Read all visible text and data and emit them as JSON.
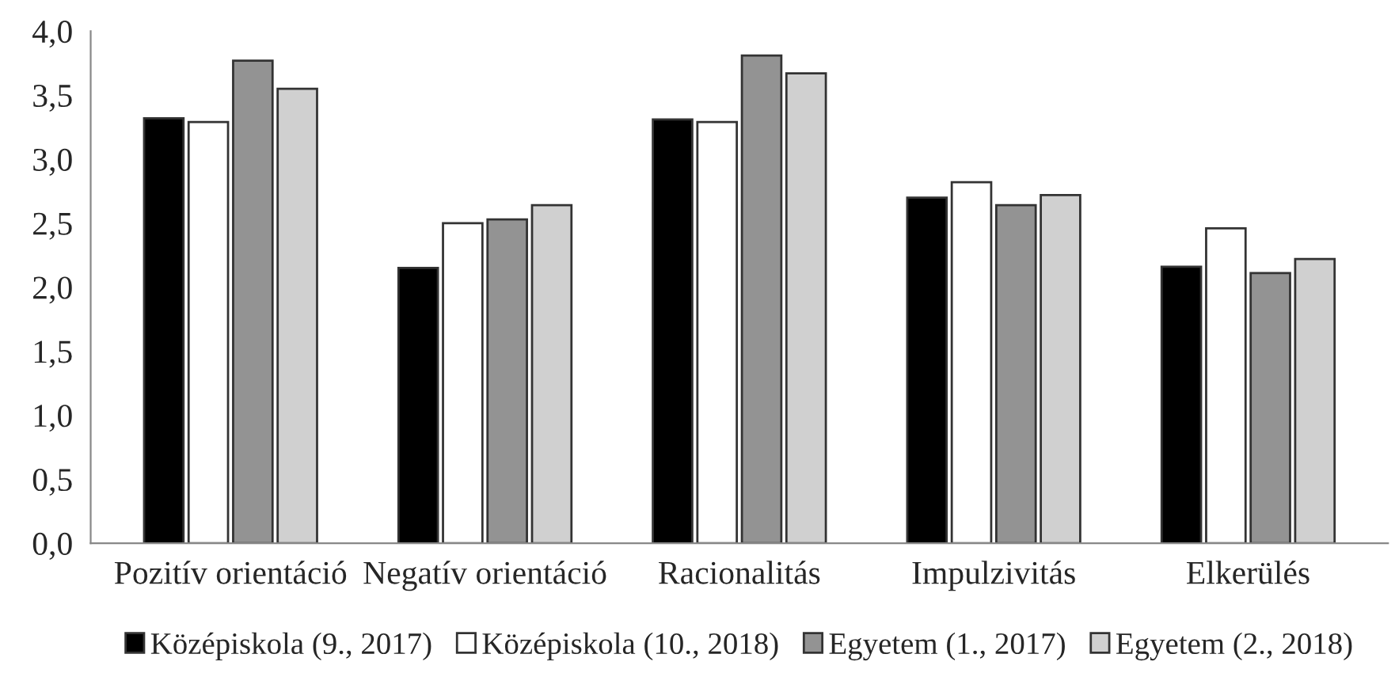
{
  "chart_data": {
    "type": "bar",
    "categories": [
      "Pozitív orientáció",
      "Negatív orientáció",
      "Racionalitás",
      "Impulzivitás",
      "Elkerülés"
    ],
    "series": [
      {
        "name": "Középiskola (9., 2017)",
        "color": "#000000",
        "values": [
          3.32,
          2.15,
          3.31,
          2.7,
          2.16
        ]
      },
      {
        "name": "Középiskola (10., 2018)",
        "color": "#ffffff",
        "values": [
          3.29,
          2.5,
          3.29,
          2.82,
          2.46
        ]
      },
      {
        "name": "Egyetem (1., 2017)",
        "color": "#939393",
        "values": [
          3.77,
          2.53,
          3.81,
          2.64,
          2.11
        ]
      },
      {
        "name": "Egyetem (2., 2018)",
        "color": "#d0d0d0",
        "values": [
          3.55,
          2.64,
          3.67,
          2.72,
          2.22
        ]
      }
    ],
    "ylim": [
      0,
      4
    ],
    "yticks": [
      {
        "value": 0,
        "label": "0,0"
      },
      {
        "value": 0.5,
        "label": "0,5"
      },
      {
        "value": 1,
        "label": "1,0"
      },
      {
        "value": 1.5,
        "label": "1,5"
      },
      {
        "value": 2,
        "label": "2,0"
      },
      {
        "value": 2.5,
        "label": "2,5"
      },
      {
        "value": 3,
        "label": "3,0"
      },
      {
        "value": 3.5,
        "label": "3,5"
      },
      {
        "value": 4,
        "label": "4,0"
      }
    ],
    "grid": false,
    "legend": "bottom"
  }
}
